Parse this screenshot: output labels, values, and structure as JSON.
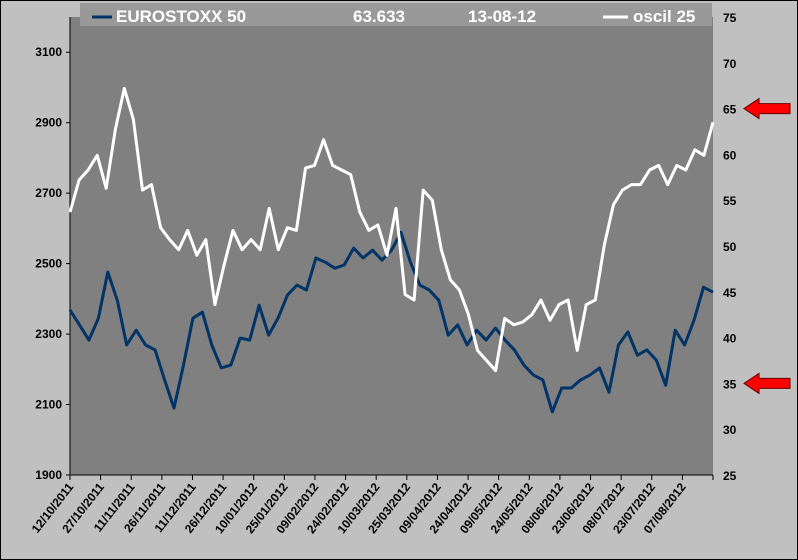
{
  "chart_data": {
    "type": "line",
    "legend": {
      "series1": "EUROSTOXX 50",
      "value": "63.633",
      "date": "13-08-12",
      "series2": "oscil 25",
      "placement": "top"
    },
    "x_tick_labels": [
      "12/10/2011",
      "27/10/2011",
      "11/11/2011",
      "26/11/2011",
      "11/12/2011",
      "26/12/2011",
      "10/01/2012",
      "25/01/2012",
      "09/02/2012",
      "24/02/2012",
      "10/03/2012",
      "25/03/2012",
      "09/04/2012",
      "24/04/2012",
      "09/05/2012",
      "24/05/2012",
      "08/06/2012",
      "23/06/2012",
      "08/07/2012",
      "23/07/2012",
      "07/08/2012"
    ],
    "y_left": {
      "ylim": [
        1900,
        3200
      ],
      "ticks": [
        1900,
        2100,
        2300,
        2500,
        2700,
        2900,
        3100
      ]
    },
    "y_right": {
      "ylim": [
        25,
        75
      ],
      "ticks": [
        25,
        30,
        35,
        40,
        45,
        50,
        55,
        60,
        65,
        70,
        75
      ]
    },
    "markers": [
      {
        "axis": "right",
        "value": 65,
        "color": "#ff0000"
      },
      {
        "axis": "right",
        "value": 35,
        "color": "#ff0000"
      }
    ],
    "series": [
      {
        "name": "EUROSTOXX 50",
        "axis": "left",
        "color": "#003366",
        "values": [
          2368,
          2326,
          2283,
          2345,
          2476,
          2396,
          2269,
          2311,
          2269,
          2255,
          2170,
          2090,
          2212,
          2345,
          2362,
          2269,
          2204,
          2212,
          2289,
          2283,
          2382,
          2297,
          2345,
          2411,
          2439,
          2425,
          2516,
          2504,
          2487,
          2496,
          2544,
          2516,
          2538,
          2510,
          2538,
          2589,
          2504,
          2439,
          2425,
          2396,
          2297,
          2326,
          2269,
          2311,
          2283,
          2317,
          2283,
          2255,
          2212,
          2184,
          2170,
          2079,
          2147,
          2147,
          2170,
          2184,
          2204,
          2135,
          2269,
          2306,
          2240,
          2255,
          2226,
          2155,
          2311,
          2269,
          2340,
          2433,
          2419
        ]
      },
      {
        "name": "oscil 25",
        "axis": "right",
        "color": "#ffffff",
        "values": [
          53.7,
          57.2,
          58.3,
          59.9,
          56.3,
          62.7,
          67.2,
          63.8,
          56.1,
          56.7,
          52.0,
          50.7,
          49.6,
          51.7,
          49.0,
          50.7,
          43.6,
          47.9,
          51.7,
          49.6,
          50.7,
          49.6,
          54.1,
          49.6,
          52.0,
          51.7,
          58.5,
          58.8,
          61.6,
          58.8,
          58.3,
          57.8,
          53.7,
          51.7,
          52.3,
          49.0,
          54.1,
          44.7,
          44.1,
          56.1,
          55.0,
          49.6,
          46.3,
          45.2,
          42.5,
          38.6,
          37.5,
          36.4,
          42.1,
          41.4,
          41.7,
          42.5,
          44.1,
          41.9,
          43.6,
          44.1,
          38.6,
          43.6,
          44.1,
          50.1,
          54.5,
          56.1,
          56.7,
          56.7,
          58.3,
          58.8,
          56.7,
          58.8,
          58.3,
          60.5,
          59.9,
          63.5
        ]
      }
    ],
    "colors": {
      "background": "#c0c0c0",
      "plot": "#808080",
      "legend_bg": "#999999"
    }
  }
}
